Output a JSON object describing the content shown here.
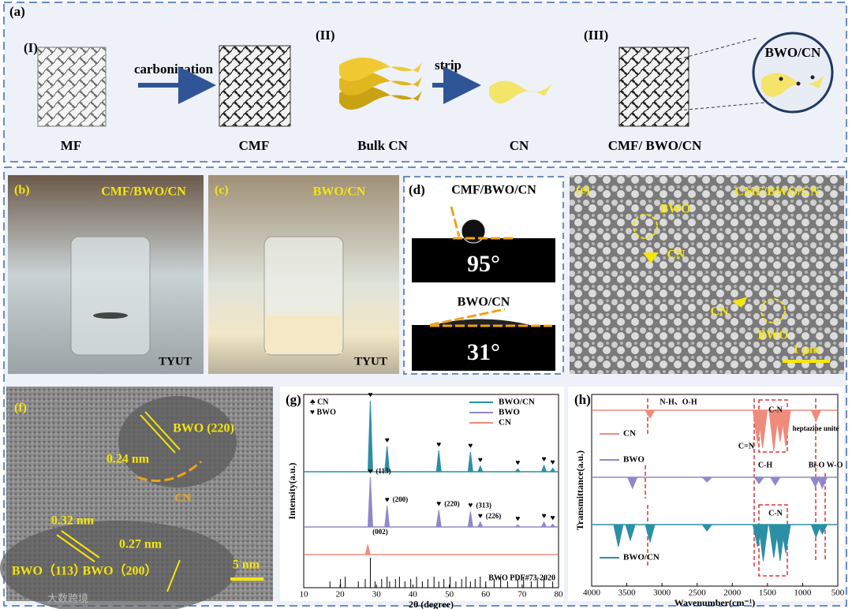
{
  "panels": {
    "a": {
      "label": "(a)",
      "items": [
        {
          "tag": "(I)",
          "name": "MF"
        },
        {
          "name": "CMF"
        },
        {
          "tag": "(II)",
          "name": "Bulk CN"
        },
        {
          "name": "CN"
        },
        {
          "tag": "(III)",
          "name": "CMF/ BWO/CN"
        }
      ],
      "arrows": [
        "carbonization",
        "strip"
      ],
      "inset": "BWO/CN"
    },
    "b": {
      "label": "(b)",
      "title": "CMF/BWO/CN",
      "mark": "TYUT"
    },
    "c": {
      "label": "(c)",
      "title": "BWO/CN",
      "mark": "TYUT"
    },
    "d": {
      "label": "(d)",
      "top": {
        "name": "CMF/BWO/CN",
        "angle": "95°"
      },
      "bottom": {
        "name": "BWO/CN",
        "angle": "31°"
      }
    },
    "e": {
      "label": "(e)",
      "title": "CMF/BWO/CN",
      "annotations": [
        "BWO",
        "CN",
        "CN",
        "BWO"
      ],
      "scale": "1 μm"
    },
    "f": {
      "label": "(f)",
      "annotations": [
        "BWO (220)",
        "0.24 nm",
        "CN",
        "0.32 nm",
        "0.27 nm",
        "BWO（113）",
        "BWO（200）"
      ],
      "scale": "5 nm"
    },
    "watermark": "大数跨境"
  },
  "chart_data": [
    {
      "type": "line",
      "label": "(g)",
      "x_label": "2θ (degree)",
      "y_label": "Intensity(a.u.)",
      "xlim": [
        10,
        80
      ],
      "xticks": [
        10,
        20,
        30,
        40,
        50,
        60,
        70,
        80
      ],
      "symbol_legend": [
        "♣ CN",
        "♥ BWO"
      ],
      "peak_symbol": "♥",
      "series": [
        {
          "name": "BWO/CN",
          "color": "#2b8fa6",
          "peak_x": [
            28.3,
            32.9,
            47.1,
            55.8,
            58.5,
            68.8,
            76.0,
            78.4
          ],
          "peak_h": [
            100,
            36,
            30,
            28,
            8,
            4,
            9,
            5
          ]
        },
        {
          "name": "BWO",
          "color": "#8f88c9",
          "peak_x": [
            28.3,
            32.9,
            47.1,
            55.8,
            58.5,
            68.8,
            76.0,
            78.4
          ],
          "peak_h": [
            70,
            30,
            24,
            22,
            7,
            3,
            7,
            4
          ],
          "peak_labels": [
            "(113)",
            "(200)",
            "(220)",
            "(313)",
            "(226)"
          ]
        },
        {
          "name": "CN",
          "color": "#ef8b7b",
          "peak_x": [
            27.6
          ],
          "peak_h": [
            14
          ],
          "peak_labels": [
            "(002)"
          ]
        }
      ],
      "reference": {
        "name": "BWO PDF#73-2020",
        "positions": [
          17.2,
          20.1,
          21.4,
          25.0,
          26.9,
          28.3,
          29.6,
          31.4,
          32.9,
          33.6,
          35.2,
          36.3,
          37.8,
          39.4,
          41.0,
          42.6,
          44.1,
          45.8,
          47.1,
          48.5,
          50.2,
          51.8,
          53.4,
          54.6,
          55.8,
          57.1,
          58.5,
          60.0,
          62.3,
          64.1,
          66.0,
          68.8,
          70.4,
          72.5,
          74.2,
          76.0,
          78.4
        ]
      }
    },
    {
      "type": "line",
      "label": "(h)",
      "x_label": "Wavenumber(cm⁻¹)",
      "y_label": "Transmittance(a.u.)",
      "xlim": [
        4000,
        500
      ],
      "xticks": [
        4000,
        3500,
        3000,
        2500,
        2000,
        1500,
        1000,
        500
      ],
      "annotations": [
        "N-H、O-H",
        "C-N",
        "C=N",
        "heptazine unite",
        "C-H",
        "Bi-O",
        "W-O",
        "C-N"
      ],
      "series": [
        {
          "name": "CN",
          "color": "#ef8b7b",
          "dip_x": [
            3170,
            1640,
            1570,
            1410,
            1320,
            1240,
            810
          ],
          "dip_depth": [
            10,
            42,
            48,
            52,
            40,
            46,
            14
          ]
        },
        {
          "name": "BWO",
          "color": "#8f88c9",
          "dip_x": [
            3420,
            2360,
            1620,
            1390,
            820,
            720
          ],
          "dip_depth": [
            14,
            6,
            8,
            10,
            12,
            14
          ]
        },
        {
          "name": "BWO/CN",
          "color": "#2b8fa6",
          "dip_x": [
            3620,
            3450,
            3170,
            2360,
            1640,
            1560,
            1410,
            1320,
            1240,
            810,
            720
          ],
          "dip_depth": [
            28,
            20,
            22,
            8,
            28,
            46,
            42,
            46,
            36,
            16,
            12
          ]
        }
      ]
    }
  ]
}
